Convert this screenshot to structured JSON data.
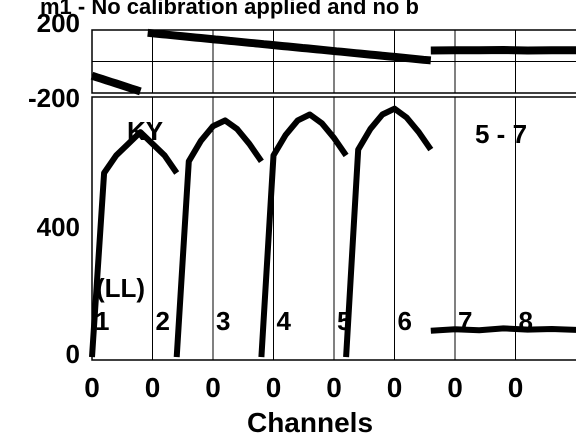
{
  "chart_data": {
    "type": "line",
    "title": "m1 - No calibration applied and no b",
    "xlabel": "Channels",
    "x_tick_labels": [
      "0",
      "0",
      "0",
      "0",
      "0",
      "0",
      "0",
      "0"
    ],
    "grid": true,
    "phase_panel": {
      "yticks": [
        "200",
        "-200"
      ],
      "ylim": [
        -200,
        200
      ],
      "segments": [
        {
          "x": [
            0,
            20,
            40,
            60,
            80,
            100,
            120,
            140,
            160,
            180,
            200
          ],
          "y": [
            -90,
            -100,
            -110,
            -120,
            -130,
            -140,
            -150,
            -160,
            -170,
            -180,
            -190
          ],
          "x_range": [
            0,
            200
          ]
        },
        {
          "x": [
            230,
            250,
            270,
            290,
            310,
            330,
            350,
            370,
            390,
            410,
            430,
            450,
            470,
            490,
            510,
            530,
            550,
            570,
            590,
            610,
            630,
            650,
            670,
            690,
            710,
            730,
            750,
            770,
            790,
            810,
            830,
            850,
            870,
            890,
            910,
            930,
            950,
            970,
            990,
            1010,
            1030,
            1050,
            1070,
            1090,
            1110,
            1130,
            1150,
            1170,
            1190,
            1210,
            1230,
            1250,
            1270,
            1290,
            1310,
            1330,
            1350,
            1370,
            1390,
            1400
          ],
          "y": [
            182,
            179,
            176,
            173,
            170,
            167,
            164,
            161,
            158,
            155,
            152,
            149,
            146,
            143,
            140,
            137,
            134,
            131,
            128,
            125,
            122,
            119,
            116,
            113,
            110,
            107,
            104,
            101,
            98,
            95,
            92,
            89,
            86,
            83,
            80,
            77,
            74,
            71,
            68,
            65,
            62,
            59,
            56,
            53,
            50,
            47,
            44,
            41,
            38,
            35,
            32,
            29,
            26,
            23,
            20,
            17,
            14,
            11,
            8,
            7
          ],
          "x_range": [
            230,
            1400
          ]
        },
        {
          "x": [
            1400,
            1500,
            1600,
            1700,
            1800,
            1900,
            2000,
            2100,
            2200,
            2300,
            2400,
            2500,
            2600,
            2700,
            2800
          ],
          "y": [
            70,
            72,
            71,
            73,
            70,
            72,
            71,
            70,
            72,
            71,
            73,
            72,
            70,
            71,
            72
          ],
          "x_range": [
            1400,
            2800
          ]
        }
      ]
    },
    "amplitude_panel": {
      "yticks": [
        "400",
        "0"
      ],
      "ylim": [
        0,
        900
      ],
      "series": [
        {
          "x": [
            0,
            50,
            100,
            150,
            200,
            250,
            300,
            350
          ],
          "y": [
            10,
            640,
            700,
            740,
            780,
            740,
            700,
            640
          ]
        },
        {
          "x": [
            350,
            400,
            450,
            500,
            550,
            600,
            650,
            700
          ],
          "y": [
            10,
            680,
            750,
            800,
            820,
            790,
            740,
            680
          ]
        },
        {
          "x": [
            700,
            750,
            800,
            850,
            900,
            950,
            1000,
            1050
          ],
          "y": [
            10,
            700,
            770,
            820,
            840,
            810,
            760,
            700
          ]
        },
        {
          "x": [
            1050,
            1100,
            1150,
            1200,
            1250,
            1300,
            1350,
            1400
          ],
          "y": [
            10,
            720,
            790,
            840,
            860,
            830,
            780,
            720
          ]
        },
        {
          "x": [
            1400,
            1500,
            1600,
            1700,
            1800,
            1900,
            2000,
            2100,
            2200,
            2300,
            2400,
            2500,
            2600,
            2700,
            2800
          ],
          "y": [
            100,
            105,
            102,
            108,
            104,
            106,
            103,
            107,
            105,
            104,
            108,
            106,
            103,
            105,
            104
          ]
        }
      ]
    },
    "annotations": {
      "ky": "KY",
      "ll": "(LL)",
      "range": "5 - 7",
      "channels": [
        "1",
        "2",
        "3",
        "4",
        "5",
        "6",
        "7",
        "8"
      ]
    }
  }
}
